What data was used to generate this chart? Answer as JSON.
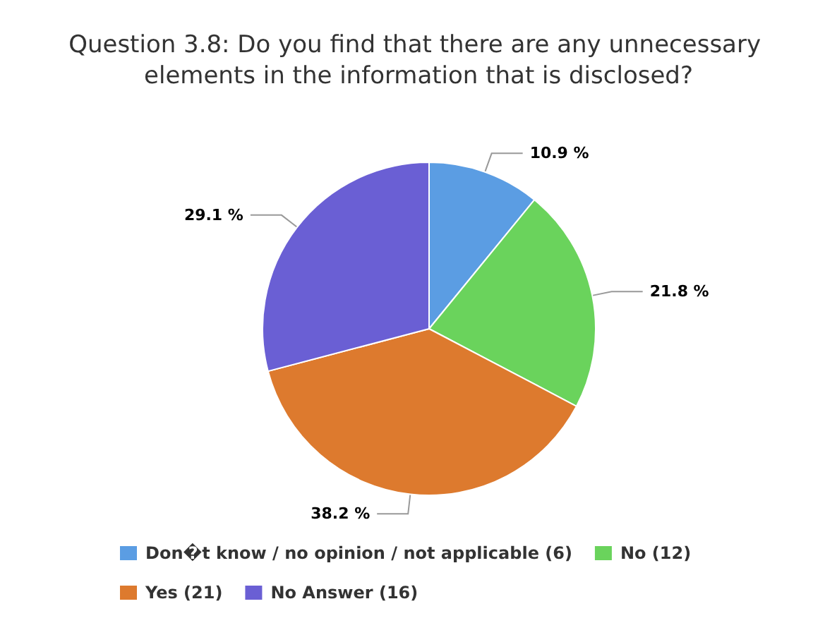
{
  "chart_data": {
    "type": "pie",
    "title": "Question 3.8: Do you find that there are any unnecessary elements in the information that is disclosed?",
    "categories": [
      "Don�t know / no opinion / not applicable (6)",
      "No (12)",
      "Yes (21)",
      "No Answer (16)"
    ],
    "values": [
      10.9,
      21.8,
      38.2,
      29.1
    ],
    "value_labels": [
      "10.9 %",
      "21.8 %",
      "38.2 %",
      "29.1 %"
    ],
    "colors": [
      "#5b9de3",
      "#6ad35c",
      "#dd7a2e",
      "#6a5fd4"
    ],
    "legend": "bottom"
  }
}
